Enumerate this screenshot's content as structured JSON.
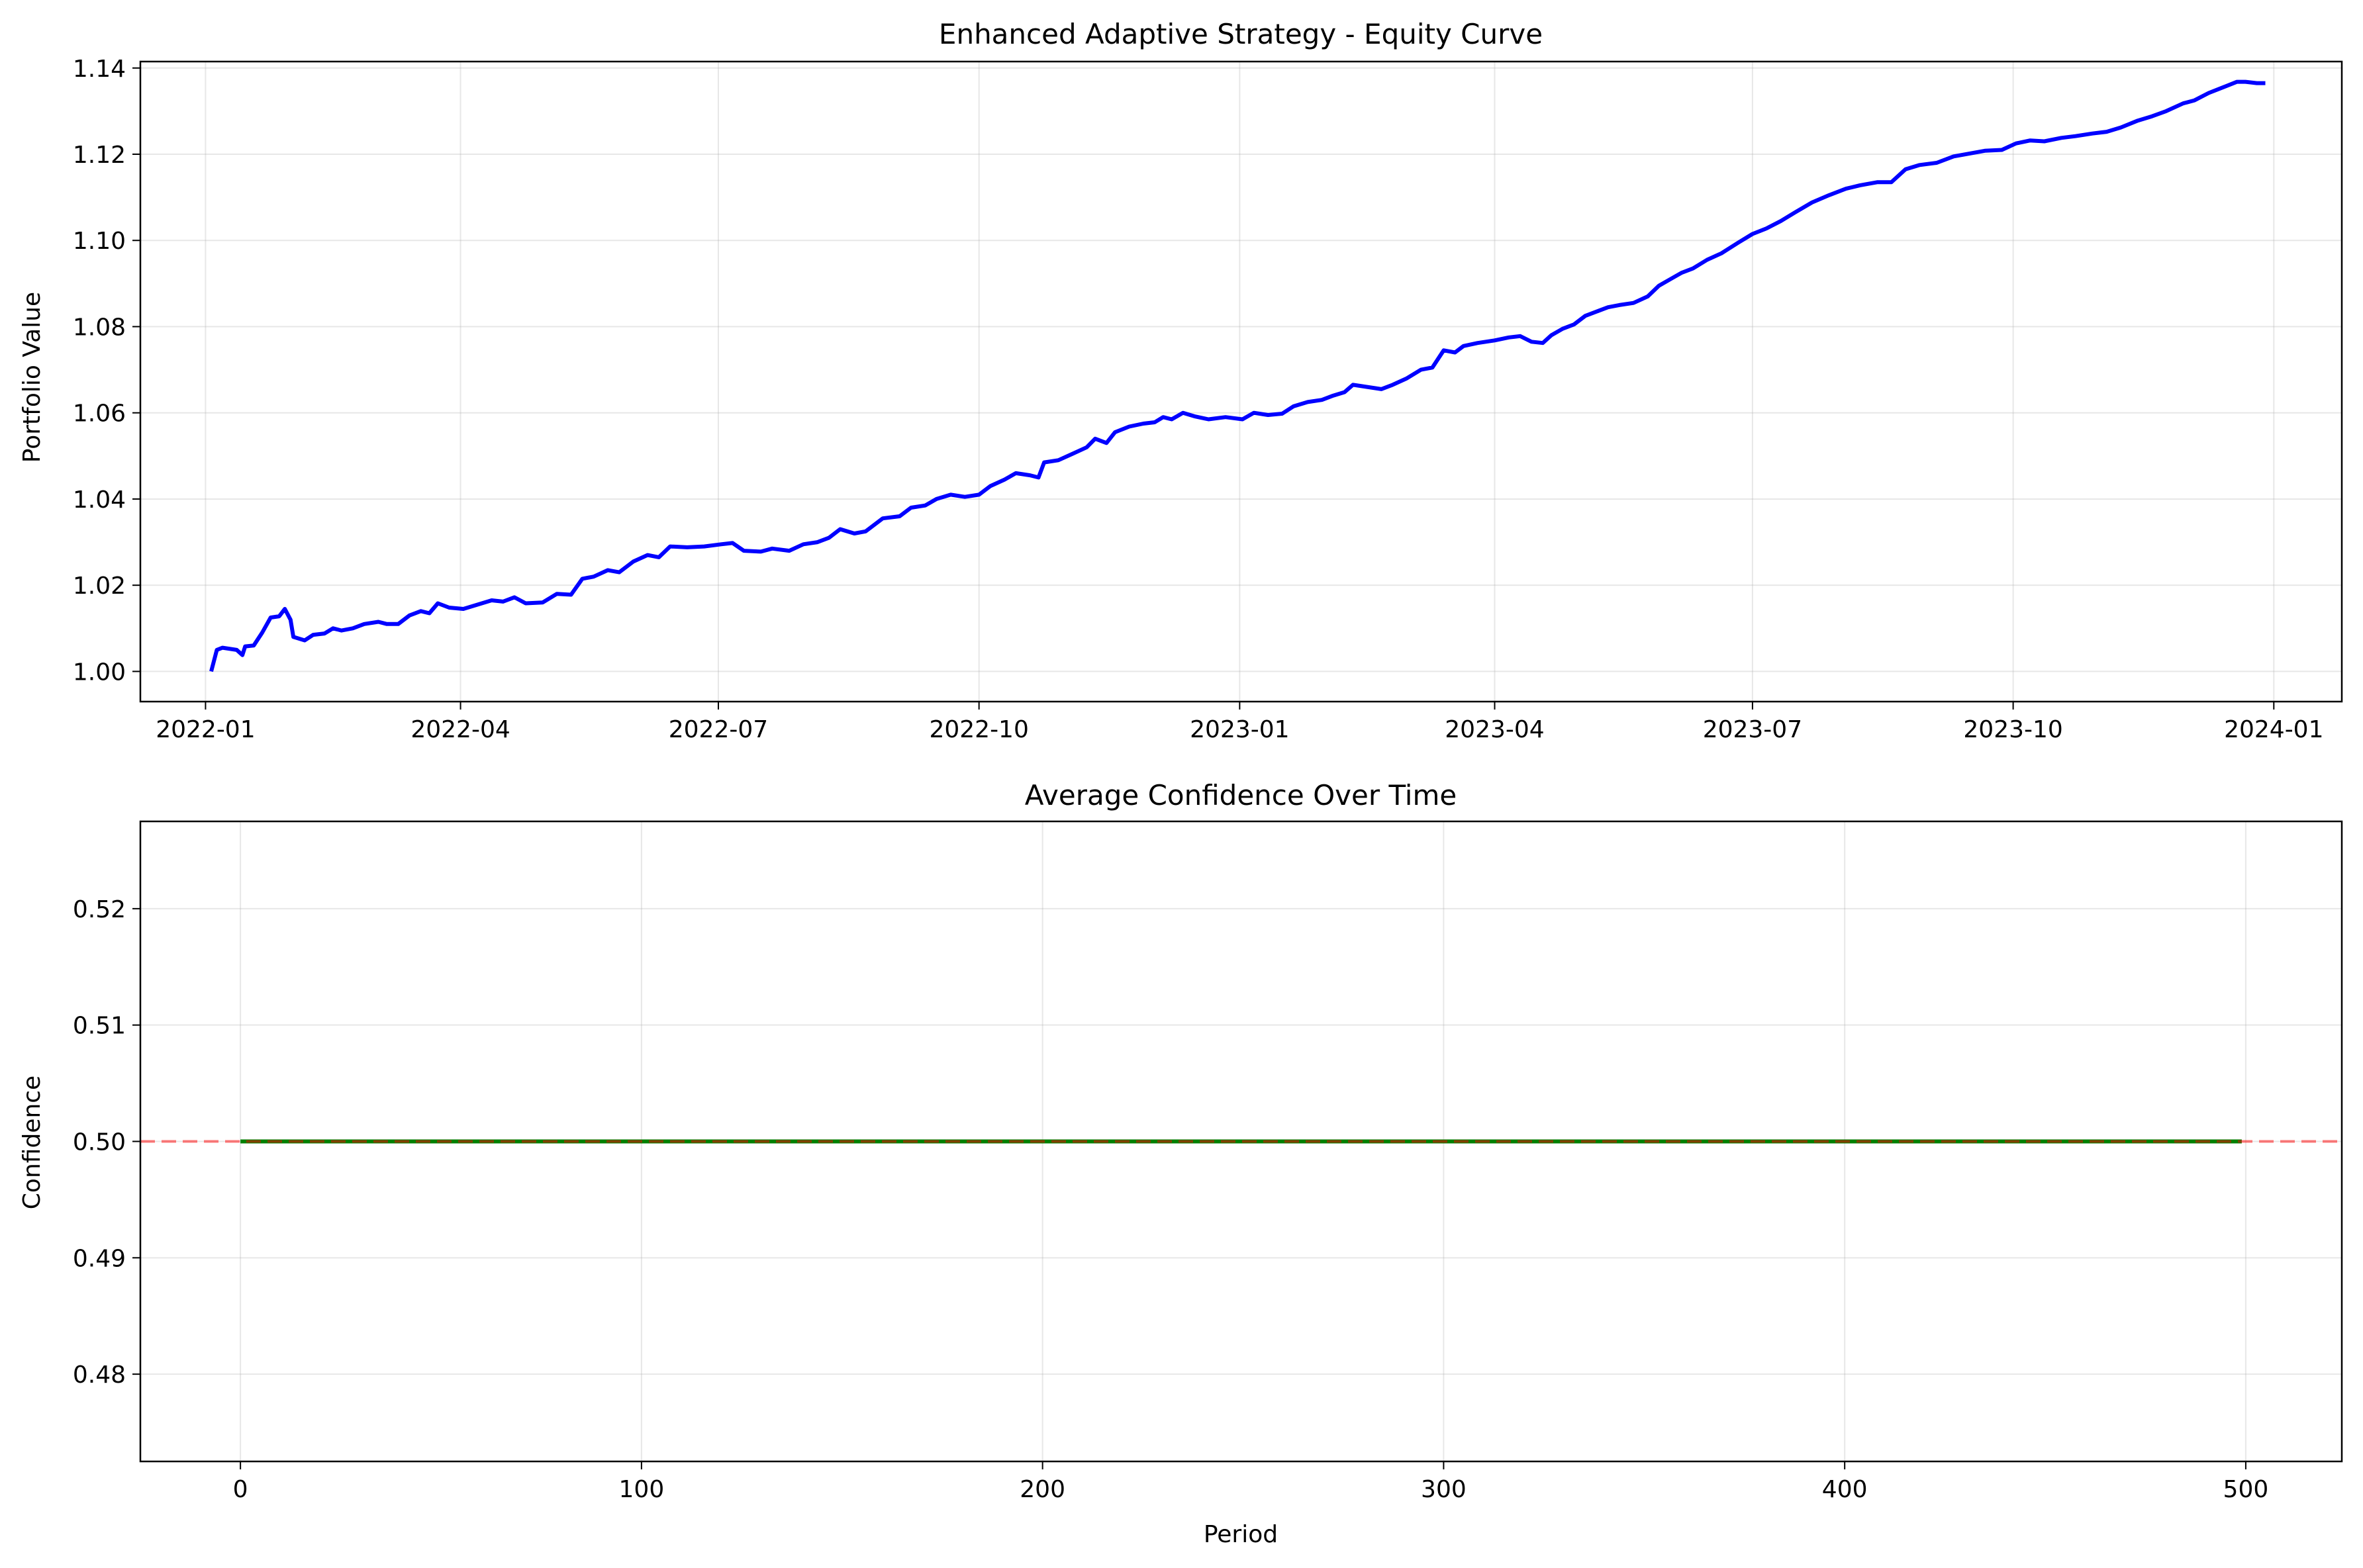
{
  "chart_data": [
    {
      "type": "line",
      "title": "Enhanced Adaptive Strategy - Equity Curve",
      "xlabel": "",
      "ylabel": "Portfolio Value",
      "x_axis_type": "date",
      "xlim": [
        "2021-12-09",
        "2024-01-25"
      ],
      "ylim": [
        0.993,
        1.1415
      ],
      "grid": true,
      "x_ticks": [
        "2022-01",
        "2022-04",
        "2022-07",
        "2022-10",
        "2023-01",
        "2023-04",
        "2023-07",
        "2023-10",
        "2024-01"
      ],
      "y_ticks": [
        "1.00",
        "1.02",
        "1.04",
        "1.06",
        "1.08",
        "1.10",
        "1.12",
        "1.14"
      ],
      "series": [
        {
          "color": "#0000ff",
          "points": [
            [
              "2022-01-03",
              1.0
            ],
            [
              "2022-01-05",
              1.005
            ],
            [
              "2022-01-07",
              1.0055
            ],
            [
              "2022-01-12",
              1.005
            ],
            [
              "2022-01-14",
              1.0038
            ],
            [
              "2022-01-15",
              1.0058
            ],
            [
              "2022-01-18",
              1.006
            ],
            [
              "2022-01-21",
              1.009
            ],
            [
              "2022-01-24",
              1.0125
            ],
            [
              "2022-01-27",
              1.0128
            ],
            [
              "2022-01-29",
              1.0145
            ],
            [
              "2022-01-31",
              1.012
            ],
            [
              "2022-02-01",
              1.008
            ],
            [
              "2022-02-05",
              1.0072
            ],
            [
              "2022-02-08",
              1.0085
            ],
            [
              "2022-02-12",
              1.0088
            ],
            [
              "2022-02-15",
              1.01
            ],
            [
              "2022-02-18",
              1.0095
            ],
            [
              "2022-02-22",
              1.01
            ],
            [
              "2022-02-26",
              1.011
            ],
            [
              "2022-03-03",
              1.0115
            ],
            [
              "2022-03-06",
              1.011
            ],
            [
              "2022-03-10",
              1.011
            ],
            [
              "2022-03-14",
              1.013
            ],
            [
              "2022-03-18",
              1.014
            ],
            [
              "2022-03-21",
              1.0135
            ],
            [
              "2022-03-24",
              1.0158
            ],
            [
              "2022-03-28",
              1.0148
            ],
            [
              "2022-04-02",
              1.0145
            ],
            [
              "2022-04-07",
              1.0155
            ],
            [
              "2022-04-12",
              1.0165
            ],
            [
              "2022-04-16",
              1.0162
            ],
            [
              "2022-04-20",
              1.0172
            ],
            [
              "2022-04-24",
              1.0158
            ],
            [
              "2022-04-30",
              1.016
            ],
            [
              "2022-05-05",
              1.018
            ],
            [
              "2022-05-10",
              1.0178
            ],
            [
              "2022-05-14",
              1.0215
            ],
            [
              "2022-05-18",
              1.022
            ],
            [
              "2022-05-23",
              1.0235
            ],
            [
              "2022-05-27",
              1.023
            ],
            [
              "2022-06-01",
              1.0255
            ],
            [
              "2022-06-06",
              1.027
            ],
            [
              "2022-06-10",
              1.0265
            ],
            [
              "2022-06-14",
              1.029
            ],
            [
              "2022-06-20",
              1.0288
            ],
            [
              "2022-06-26",
              1.029
            ],
            [
              "2022-07-02",
              1.0295
            ],
            [
              "2022-07-06",
              1.0298
            ],
            [
              "2022-07-10",
              1.028
            ],
            [
              "2022-07-16",
              1.0278
            ],
            [
              "2022-07-20",
              1.0285
            ],
            [
              "2022-07-26",
              1.028
            ],
            [
              "2022-07-31",
              1.0295
            ],
            [
              "2022-08-05",
              1.03
            ],
            [
              "2022-08-09",
              1.031
            ],
            [
              "2022-08-13",
              1.033
            ],
            [
              "2022-08-18",
              1.032
            ],
            [
              "2022-08-22",
              1.0325
            ],
            [
              "2022-08-28",
              1.0355
            ],
            [
              "2022-09-03",
              1.036
            ],
            [
              "2022-09-07",
              1.038
            ],
            [
              "2022-09-12",
              1.0385
            ],
            [
              "2022-09-16",
              1.04
            ],
            [
              "2022-09-21",
              1.041
            ],
            [
              "2022-09-26",
              1.0405
            ],
            [
              "2022-10-01",
              1.041
            ],
            [
              "2022-10-05",
              1.043
            ],
            [
              "2022-10-10",
              1.0445
            ],
            [
              "2022-10-14",
              1.046
            ],
            [
              "2022-10-19",
              1.0455
            ],
            [
              "2022-10-22",
              1.045
            ],
            [
              "2022-10-24",
              1.0485
            ],
            [
              "2022-10-29",
              1.049
            ],
            [
              "2022-11-03",
              1.0505
            ],
            [
              "2022-11-08",
              1.052
            ],
            [
              "2022-11-11",
              1.054
            ],
            [
              "2022-11-15",
              1.053
            ],
            [
              "2022-11-18",
              1.0555
            ],
            [
              "2022-11-23",
              1.0568
            ],
            [
              "2022-11-28",
              1.0575
            ],
            [
              "2022-12-02",
              1.0578
            ],
            [
              "2022-12-05",
              1.059
            ],
            [
              "2022-12-08",
              1.0585
            ],
            [
              "2022-12-12",
              1.06
            ],
            [
              "2022-12-16",
              1.0592
            ],
            [
              "2022-12-21",
              1.0585
            ],
            [
              "2022-12-27",
              1.059
            ],
            [
              "2023-01-02",
              1.0585
            ],
            [
              "2023-01-06",
              1.06
            ],
            [
              "2023-01-11",
              1.0595
            ],
            [
              "2023-01-16",
              1.0598
            ],
            [
              "2023-01-20",
              1.0615
            ],
            [
              "2023-01-25",
              1.0625
            ],
            [
              "2023-01-30",
              1.063
            ],
            [
              "2023-02-03",
              1.064
            ],
            [
              "2023-02-07",
              1.0648
            ],
            [
              "2023-02-10",
              1.0665
            ],
            [
              "2023-02-15",
              1.066
            ],
            [
              "2023-02-20",
              1.0655
            ],
            [
              "2023-02-24",
              1.0665
            ],
            [
              "2023-03-01",
              1.068
            ],
            [
              "2023-03-06",
              1.07
            ],
            [
              "2023-03-10",
              1.0705
            ],
            [
              "2023-03-14",
              1.0745
            ],
            [
              "2023-03-18",
              1.074
            ],
            [
              "2023-03-21",
              1.0755
            ],
            [
              "2023-03-26",
              1.0762
            ],
            [
              "2023-04-01",
              1.0768
            ],
            [
              "2023-04-06",
              1.0775
            ],
            [
              "2023-04-10",
              1.0778
            ],
            [
              "2023-04-14",
              1.0765
            ],
            [
              "2023-04-18",
              1.0762
            ],
            [
              "2023-04-21",
              1.078
            ],
            [
              "2023-04-25",
              1.0795
            ],
            [
              "2023-04-29",
              1.0805
            ],
            [
              "2023-05-03",
              1.0825
            ],
            [
              "2023-05-07",
              1.0835
            ],
            [
              "2023-05-11",
              1.0845
            ],
            [
              "2023-05-15",
              1.085
            ],
            [
              "2023-05-20",
              1.0855
            ],
            [
              "2023-05-25",
              1.087
            ],
            [
              "2023-05-29",
              1.0895
            ],
            [
              "2023-06-02",
              1.091
            ],
            [
              "2023-06-06",
              1.0925
            ],
            [
              "2023-06-10",
              1.0935
            ],
            [
              "2023-06-15",
              1.0955
            ],
            [
              "2023-06-20",
              1.097
            ],
            [
              "2023-06-26",
              1.0995
            ],
            [
              "2023-07-01",
              1.1015
            ],
            [
              "2023-07-06",
              1.1028
            ],
            [
              "2023-07-11",
              1.1045
            ],
            [
              "2023-07-16",
              1.1065
            ],
            [
              "2023-07-22",
              1.1088
            ],
            [
              "2023-07-28",
              1.1105
            ],
            [
              "2023-08-03",
              1.112
            ],
            [
              "2023-08-08",
              1.1128
            ],
            [
              "2023-08-14",
              1.1135
            ],
            [
              "2023-08-19",
              1.1135
            ],
            [
              "2023-08-24",
              1.1165
            ],
            [
              "2023-08-29",
              1.1175
            ],
            [
              "2023-09-04",
              1.118
            ],
            [
              "2023-09-10",
              1.1195
            ],
            [
              "2023-09-16",
              1.1202
            ],
            [
              "2023-09-21",
              1.1208
            ],
            [
              "2023-09-27",
              1.121
            ],
            [
              "2023-10-02",
              1.1225
            ],
            [
              "2023-10-07",
              1.1232
            ],
            [
              "2023-10-12",
              1.123
            ],
            [
              "2023-10-18",
              1.1238
            ],
            [
              "2023-10-23",
              1.1242
            ],
            [
              "2023-10-29",
              1.1248
            ],
            [
              "2023-11-03",
              1.1252
            ],
            [
              "2023-11-08",
              1.1262
            ],
            [
              "2023-11-14",
              1.1278
            ],
            [
              "2023-11-19",
              1.1288
            ],
            [
              "2023-11-24",
              1.13
            ],
            [
              "2023-11-30",
              1.1318
            ],
            [
              "2023-12-04",
              1.1325
            ],
            [
              "2023-12-09",
              1.1342
            ],
            [
              "2023-12-14",
              1.1355
            ],
            [
              "2023-12-19",
              1.1368
            ],
            [
              "2023-12-22",
              1.1368
            ],
            [
              "2023-12-26",
              1.1365
            ],
            [
              "2023-12-29",
              1.1365
            ]
          ]
        }
      ]
    },
    {
      "type": "line",
      "title": "Average Confidence Over Time",
      "xlabel": "Period",
      "ylabel": "Confidence",
      "xlim": [
        -24.95,
        523.95
      ],
      "ylim": [
        0.4725,
        0.5275
      ],
      "grid": true,
      "x_ticks": [
        0,
        100,
        200,
        300,
        400,
        500
      ],
      "y_ticks": [
        "0.48",
        "0.49",
        "0.50",
        "0.51",
        "0.52"
      ],
      "series": [
        {
          "color": "#008000",
          "x": [
            0,
            499
          ],
          "y": [
            0.5,
            0.5
          ]
        }
      ],
      "reference_line": {
        "y": 0.5,
        "color": "#ff0000",
        "style": "dashed"
      }
    }
  ]
}
